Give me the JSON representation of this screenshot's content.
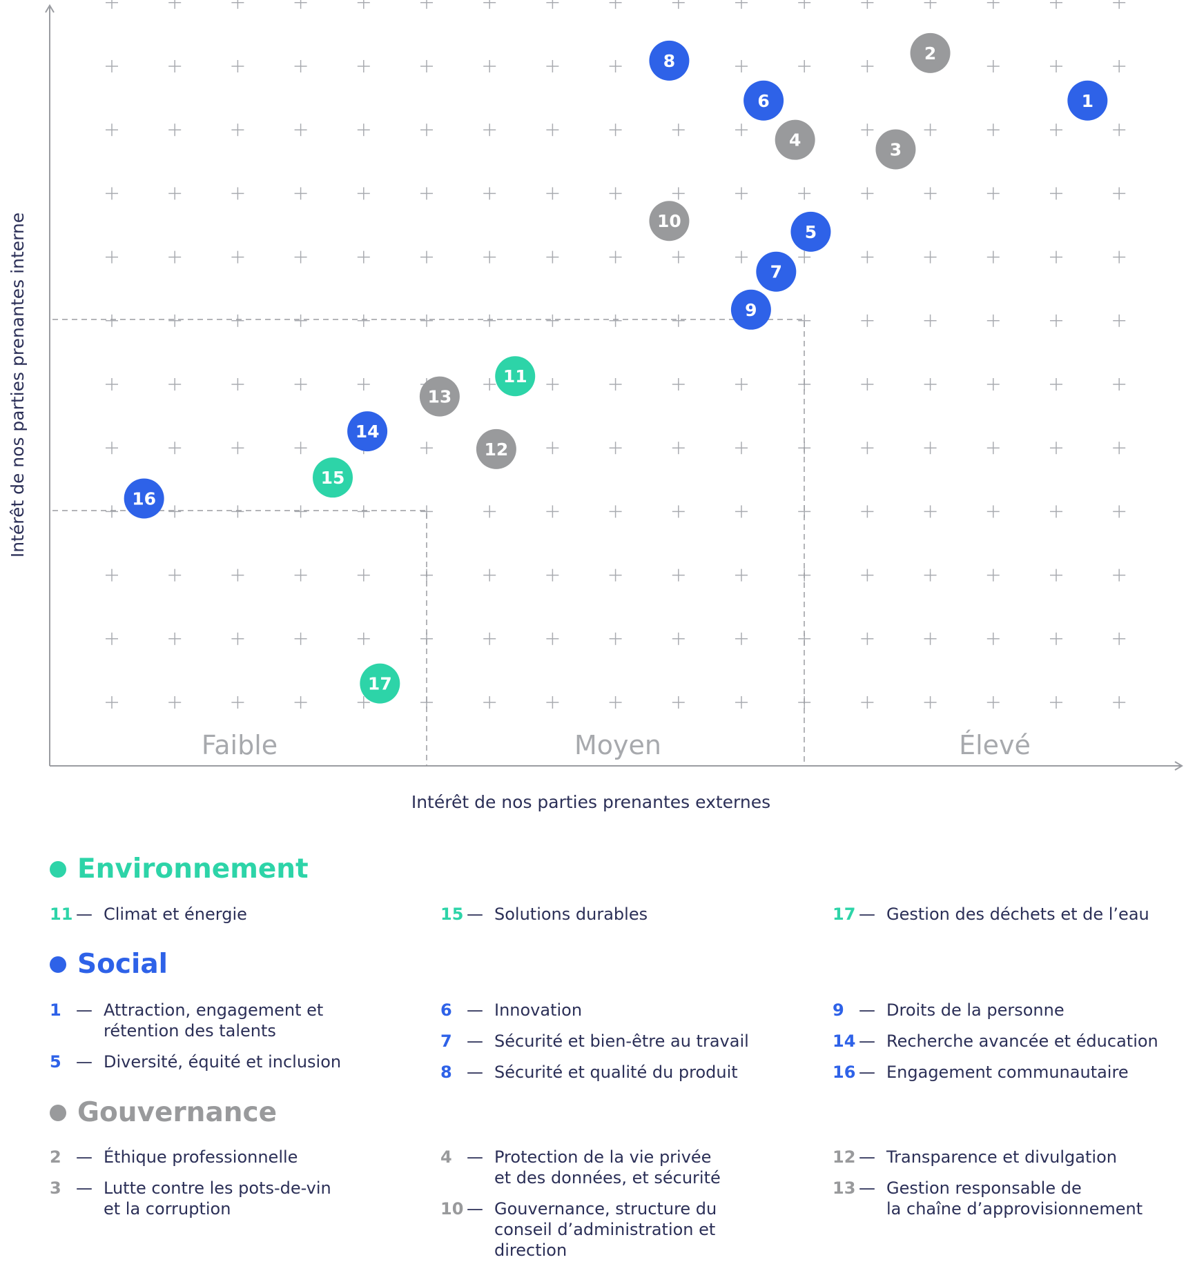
{
  "chart_data": {
    "type": "scatter",
    "title": "",
    "xlabel": "Intérêt de nos parties prenantes externes",
    "ylabel": "Intérêt de nos parties prenantes interne",
    "xlim": [
      0,
      18
    ],
    "ylim": [
      0,
      12
    ],
    "grid": true,
    "zones": [
      {
        "label": "Faible"
      },
      {
        "label": "Moyen"
      },
      {
        "label": "Élevé"
      }
    ],
    "categories": [
      {
        "name": "Environnement",
        "color": "#2dd4a8"
      },
      {
        "name": "Social",
        "color": "#2e62e8"
      },
      {
        "name": "Gouvernance",
        "color": "#999a9c"
      }
    ],
    "points": [
      {
        "id": "1",
        "category": "Social",
        "x": 16.5,
        "y": 10.5
      },
      {
        "id": "2",
        "category": "Gouvernance",
        "x": 14.0,
        "y": 11.25
      },
      {
        "id": "3",
        "category": "Gouvernance",
        "x": 13.45,
        "y": 9.73
      },
      {
        "id": "4",
        "category": "Gouvernance",
        "x": 11.85,
        "y": 9.88
      },
      {
        "id": "5",
        "category": "Social",
        "x": 12.1,
        "y": 8.43
      },
      {
        "id": "6",
        "category": "Social",
        "x": 11.35,
        "y": 10.5
      },
      {
        "id": "7",
        "category": "Social",
        "x": 11.55,
        "y": 7.8
      },
      {
        "id": "8",
        "category": "Social",
        "x": 9.85,
        "y": 11.13
      },
      {
        "id": "9",
        "category": "Social",
        "x": 11.15,
        "y": 7.2
      },
      {
        "id": "10",
        "category": "Gouvernance",
        "x": 9.85,
        "y": 8.6
      },
      {
        "id": "11",
        "category": "Environnement",
        "x": 7.4,
        "y": 6.15
      },
      {
        "id": "12",
        "category": "Gouvernance",
        "x": 7.1,
        "y": 5.0
      },
      {
        "id": "13",
        "category": "Gouvernance",
        "x": 6.2,
        "y": 5.83
      },
      {
        "id": "14",
        "category": "Social",
        "x": 5.05,
        "y": 5.28
      },
      {
        "id": "15",
        "category": "Environnement",
        "x": 4.5,
        "y": 4.55
      },
      {
        "id": "16",
        "category": "Social",
        "x": 1.5,
        "y": 4.22
      },
      {
        "id": "17",
        "category": "Environnement",
        "x": 5.25,
        "y": 1.3
      }
    ]
  },
  "legend": {
    "dash": "—",
    "environnement": {
      "title": "Environnement",
      "items": [
        {
          "num": "11",
          "text": "Climat et énergie"
        },
        {
          "num": "15",
          "text": "Solutions durables"
        },
        {
          "num": "17",
          "text": "Gestion des déchets et de l’eau"
        }
      ]
    },
    "social": {
      "title": "Social",
      "items": [
        {
          "num": "1",
          "text": "Attraction, engagement et\nrétention des talents"
        },
        {
          "num": "5",
          "text": "Diversité, équité et inclusion"
        },
        {
          "num": "6",
          "text": "Innovation"
        },
        {
          "num": "7",
          "text": "Sécurité et bien-être au travail"
        },
        {
          "num": "8",
          "text": " Sécurité et qualité du produit"
        },
        {
          "num": "9",
          "text": "Droits de la personne"
        },
        {
          "num": "14",
          "text": "Recherche avancée et éducation"
        },
        {
          "num": "16",
          "text": "Engagement communautaire"
        }
      ]
    },
    "gouvernance": {
      "title": "Gouvernance",
      "items": [
        {
          "num": "2",
          "text": "Éthique professionnelle"
        },
        {
          "num": "3",
          "text": "Lutte contre les pots-de-vin\net la corruption"
        },
        {
          "num": "4",
          "text": "Protection de la vie privée\net des données, et sécurité"
        },
        {
          "num": "10",
          "text": "Gouvernance, structure du\nconseil d’administration et\ndirection"
        },
        {
          "num": "12",
          "text": "Transparence et divulgation"
        },
        {
          "num": "13",
          "text": "Gestion responsable de\nla chaîne d’approvisionnement"
        }
      ]
    }
  }
}
